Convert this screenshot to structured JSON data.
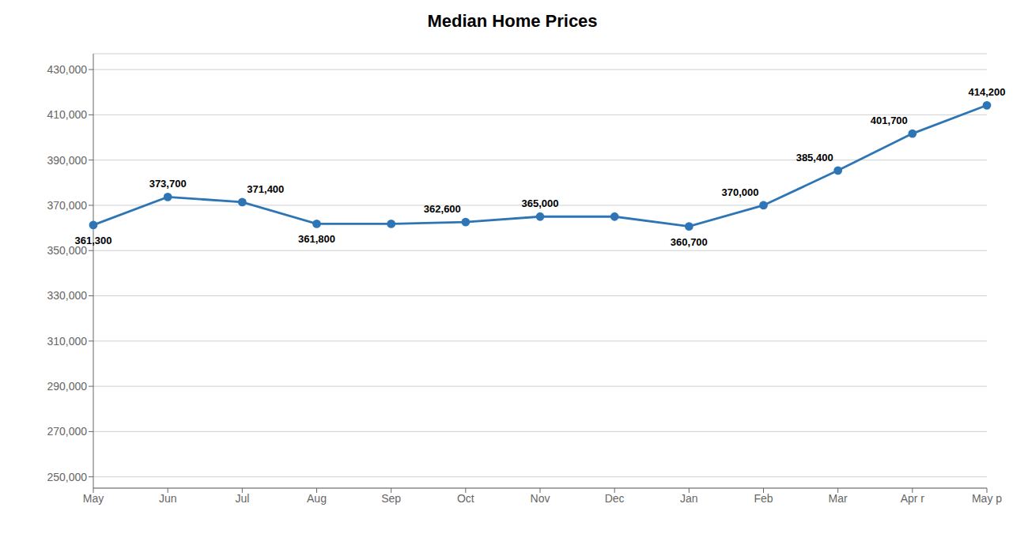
{
  "chart_data": {
    "type": "line",
    "title": "Median Home Prices",
    "categories": [
      "May",
      "Jun",
      "Jul",
      "Aug",
      "Sep",
      "Oct",
      "Nov",
      "Dec",
      "Jan",
      "Feb",
      "Mar",
      "Apr r",
      "May p"
    ],
    "values": [
      361300,
      373700,
      371400,
      361800,
      361800,
      362600,
      365000,
      365000,
      360700,
      370000,
      385400,
      401700,
      414200
    ],
    "value_labels": [
      "361,300",
      "373,700",
      "371,400",
      "361,800",
      null,
      "362,600",
      "365,000",
      null,
      "360,700",
      "370,000",
      "385,400",
      "401,700",
      "414,200"
    ],
    "color": "#2E75B6",
    "marker": "circle",
    "ylim": [
      245000,
      437000
    ],
    "yticks": [
      {
        "value": 250000,
        "label": "250,000"
      },
      {
        "value": 270000,
        "label": "270,000"
      },
      {
        "value": 290000,
        "label": "290,000"
      },
      {
        "value": 310000,
        "label": "310,000"
      },
      {
        "value": 330000,
        "label": "330,000"
      },
      {
        "value": 350000,
        "label": "350,000"
      },
      {
        "value": 370000,
        "label": "370,000"
      },
      {
        "value": 390000,
        "label": "390,000"
      },
      {
        "value": 410000,
        "label": "410,000"
      },
      {
        "value": 430000,
        "label": "430,000"
      }
    ],
    "grid": true
  }
}
